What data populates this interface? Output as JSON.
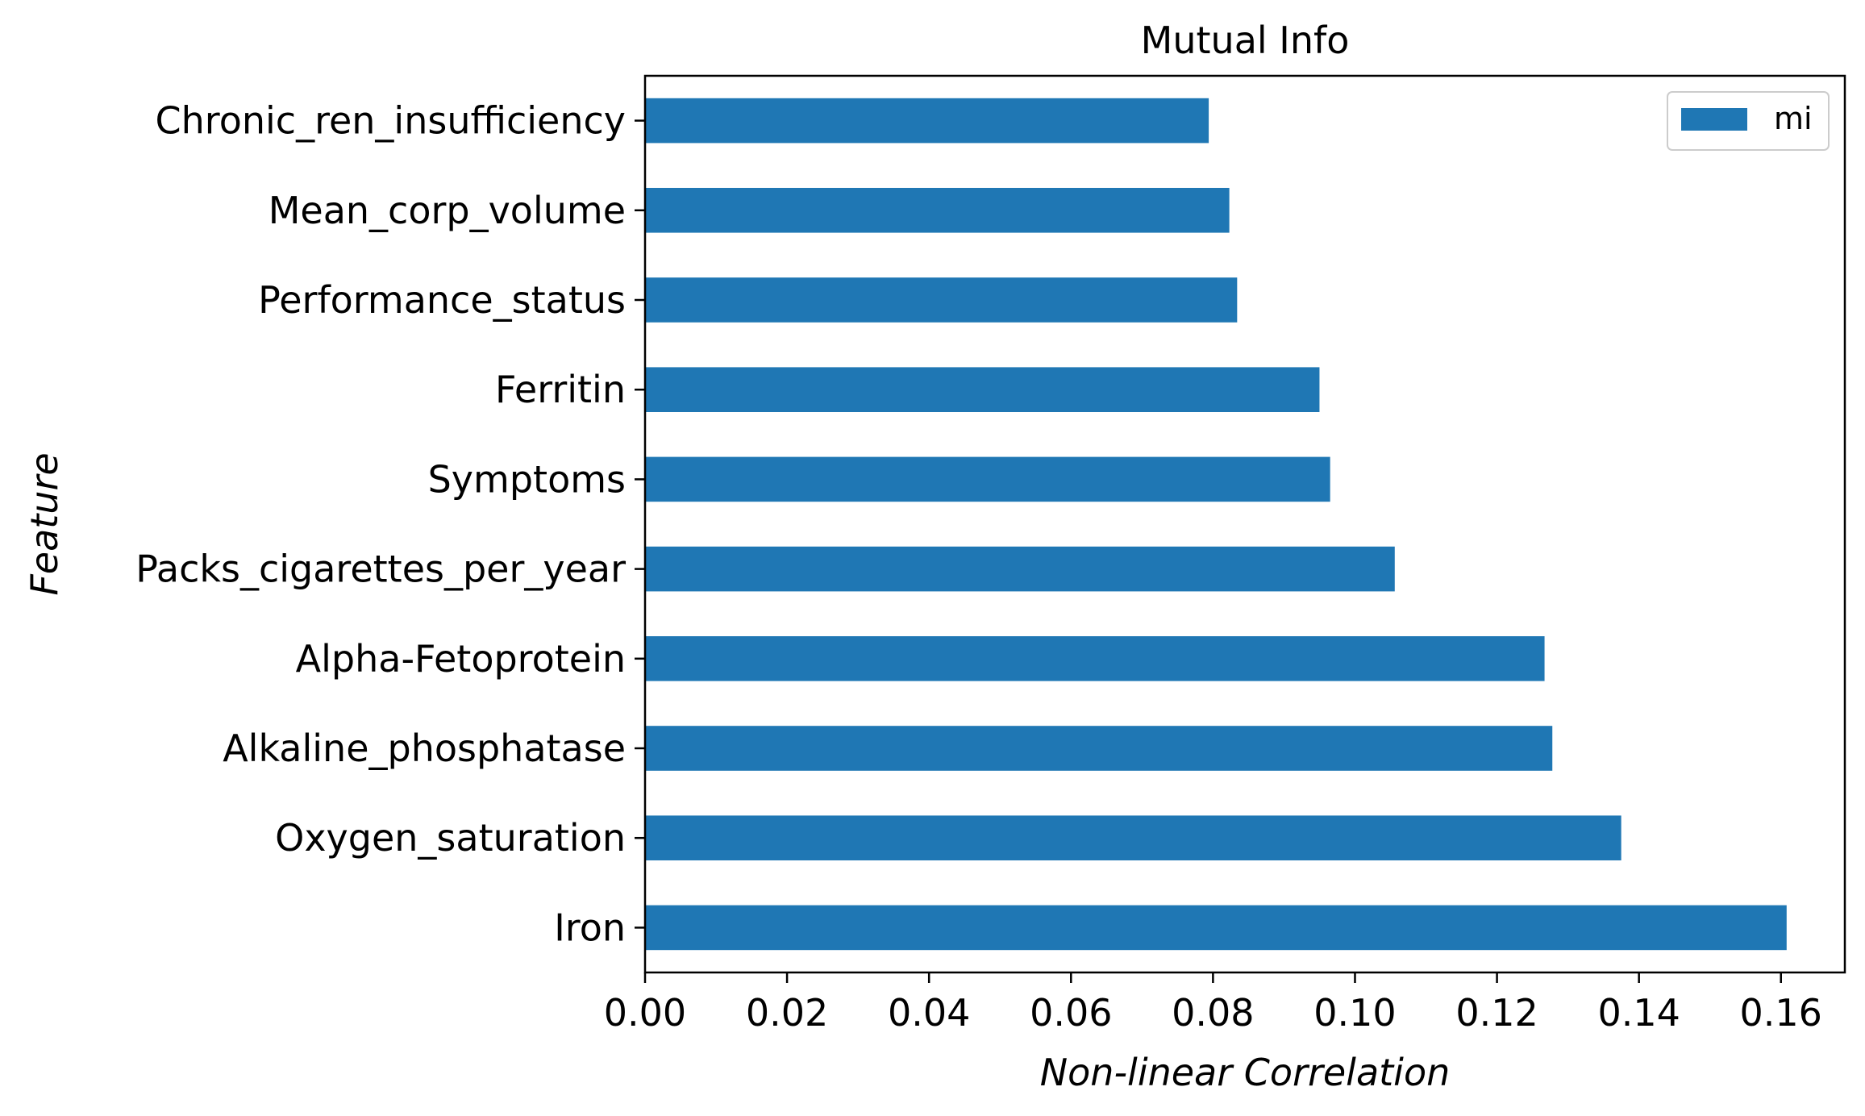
{
  "chart_data": {
    "type": "bar",
    "orientation": "horizontal",
    "title": "Mutual Info",
    "xlabel": "Non-linear Correlation",
    "ylabel": "Feature",
    "categories": [
      "Chronic_ren_insufficiency",
      "Mean_corp_volume",
      "Performance_status",
      "Ferritin",
      "Symptoms",
      "Packs_cigarettes_per_year",
      "Alpha-Fetoprotein",
      "Alkaline_phosphatase",
      "Oxygen_saturation",
      "Iron"
    ],
    "series": [
      {
        "name": "mi",
        "color": "#1f77b4",
        "values": [
          0.0794,
          0.0823,
          0.0834,
          0.095,
          0.0965,
          0.1056,
          0.1267,
          0.1278,
          0.1375,
          0.1608
        ]
      }
    ],
    "xlim": [
      0,
      0.169
    ],
    "xticks": [
      "0.00",
      "0.02",
      "0.04",
      "0.06",
      "0.08",
      "0.10",
      "0.12",
      "0.14",
      "0.16"
    ],
    "xtick_values": [
      0,
      0.02,
      0.04,
      0.06,
      0.08,
      0.1,
      0.12,
      0.14,
      0.16
    ],
    "legend": {
      "position": "top-right",
      "label": "mi"
    },
    "grid": false
  }
}
